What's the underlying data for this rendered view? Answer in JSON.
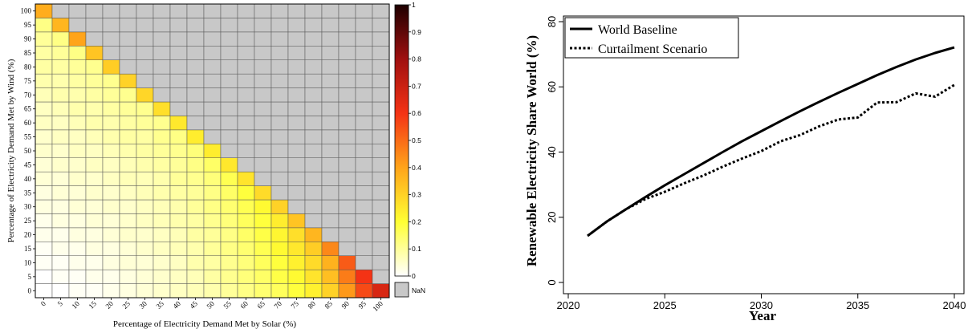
{
  "chart_data": [
    {
      "type": "heatmap",
      "xlabel": "Percentage of Electricity Demand Met by Solar (%)",
      "ylabel": "Percentage of Electricity Demand Met by Wind (%)",
      "x_ticks": [
        "0",
        "5",
        "10",
        "15",
        "20",
        "25",
        "30",
        "35",
        "40",
        "45",
        "50",
        "55",
        "60",
        "65",
        "70",
        "75",
        "80",
        "85",
        "90",
        "95",
        "100"
      ],
      "y_ticks": [
        "0",
        "5",
        "10",
        "15",
        "20",
        "25",
        "30",
        "35",
        "40",
        "45",
        "50",
        "55",
        "60",
        "65",
        "70",
        "75",
        "80",
        "85",
        "90",
        "95",
        "100"
      ],
      "colorbar": {
        "range": [
          0,
          1
        ],
        "ticks": [
          "0",
          "0.1",
          "0.2",
          "0.3",
          "0.4",
          "0.5",
          "0.6",
          "0.7",
          "0.8",
          "0.9",
          "1"
        ],
        "colors": [
          "#ffffff",
          "#ffff33",
          "#ffa41a",
          "#f43315",
          "#a01010",
          "#1e0000"
        ],
        "nan_label": "NaN",
        "nan_color": "#c8c8c8"
      },
      "values": [
        [
          0.0,
          0.0,
          0.01,
          0.01,
          0.02,
          0.03,
          0.04,
          0.05,
          0.06,
          0.07,
          0.08,
          0.1,
          0.12,
          0.14,
          0.16,
          0.19,
          0.23,
          0.3,
          0.42,
          0.56,
          0.67
        ],
        [
          0.0,
          0.01,
          0.01,
          0.02,
          0.02,
          0.03,
          0.04,
          0.05,
          0.06,
          0.07,
          0.09,
          0.11,
          0.13,
          0.15,
          0.18,
          0.21,
          0.26,
          0.34,
          0.47,
          0.6,
          null
        ],
        [
          0.01,
          0.01,
          0.02,
          0.02,
          0.03,
          0.04,
          0.04,
          0.05,
          0.06,
          0.08,
          0.09,
          0.11,
          0.13,
          0.16,
          0.19,
          0.23,
          0.28,
          0.37,
          0.53,
          null,
          null
        ],
        [
          0.01,
          0.02,
          0.02,
          0.03,
          0.03,
          0.04,
          0.05,
          0.06,
          0.07,
          0.08,
          0.1,
          0.12,
          0.14,
          0.17,
          0.21,
          0.25,
          0.31,
          0.45,
          null,
          null,
          null
        ],
        [
          0.02,
          0.02,
          0.03,
          0.03,
          0.04,
          0.05,
          0.05,
          0.06,
          0.07,
          0.09,
          0.1,
          0.12,
          0.15,
          0.18,
          0.22,
          0.27,
          0.36,
          null,
          null,
          null,
          null
        ],
        [
          0.02,
          0.03,
          0.03,
          0.04,
          0.04,
          0.05,
          0.06,
          0.07,
          0.08,
          0.09,
          0.11,
          0.13,
          0.16,
          0.19,
          0.24,
          0.33,
          null,
          null,
          null,
          null,
          null
        ],
        [
          0.03,
          0.03,
          0.04,
          0.04,
          0.05,
          0.05,
          0.06,
          0.07,
          0.08,
          0.1,
          0.12,
          0.14,
          0.17,
          0.21,
          0.3,
          null,
          null,
          null,
          null,
          null,
          null
        ],
        [
          0.03,
          0.04,
          0.04,
          0.05,
          0.05,
          0.06,
          0.07,
          0.08,
          0.09,
          0.1,
          0.12,
          0.15,
          0.19,
          0.28,
          null,
          null,
          null,
          null,
          null,
          null,
          null
        ],
        [
          0.04,
          0.04,
          0.05,
          0.05,
          0.06,
          0.07,
          0.07,
          0.08,
          0.1,
          0.11,
          0.13,
          0.17,
          0.26,
          null,
          null,
          null,
          null,
          null,
          null,
          null,
          null
        ],
        [
          0.04,
          0.05,
          0.05,
          0.06,
          0.06,
          0.07,
          0.08,
          0.09,
          0.1,
          0.12,
          0.15,
          0.25,
          null,
          null,
          null,
          null,
          null,
          null,
          null,
          null,
          null
        ],
        [
          0.05,
          0.05,
          0.06,
          0.06,
          0.07,
          0.08,
          0.09,
          0.1,
          0.11,
          0.13,
          0.24,
          null,
          null,
          null,
          null,
          null,
          null,
          null,
          null,
          null,
          null
        ],
        [
          0.05,
          0.06,
          0.06,
          0.07,
          0.08,
          0.09,
          0.09,
          0.11,
          0.12,
          0.24,
          null,
          null,
          null,
          null,
          null,
          null,
          null,
          null,
          null,
          null,
          null
        ],
        [
          0.06,
          0.06,
          0.07,
          0.08,
          0.08,
          0.09,
          0.1,
          0.11,
          0.25,
          null,
          null,
          null,
          null,
          null,
          null,
          null,
          null,
          null,
          null,
          null,
          null
        ],
        [
          0.06,
          0.07,
          0.08,
          0.08,
          0.09,
          0.1,
          0.11,
          0.27,
          null,
          null,
          null,
          null,
          null,
          null,
          null,
          null,
          null,
          null,
          null,
          null,
          null
        ],
        [
          0.07,
          0.08,
          0.08,
          0.09,
          0.1,
          0.11,
          0.29,
          null,
          null,
          null,
          null,
          null,
          null,
          null,
          null,
          null,
          null,
          null,
          null,
          null,
          null
        ],
        [
          0.08,
          0.08,
          0.09,
          0.1,
          0.11,
          0.3,
          null,
          null,
          null,
          null,
          null,
          null,
          null,
          null,
          null,
          null,
          null,
          null,
          null,
          null,
          null
        ],
        [
          0.09,
          0.09,
          0.1,
          0.11,
          0.31,
          null,
          null,
          null,
          null,
          null,
          null,
          null,
          null,
          null,
          null,
          null,
          null,
          null,
          null,
          null,
          null
        ],
        [
          0.09,
          0.1,
          0.12,
          0.33,
          null,
          null,
          null,
          null,
          null,
          null,
          null,
          null,
          null,
          null,
          null,
          null,
          null,
          null,
          null,
          null,
          null
        ],
        [
          0.1,
          0.12,
          0.4,
          null,
          null,
          null,
          null,
          null,
          null,
          null,
          null,
          null,
          null,
          null,
          null,
          null,
          null,
          null,
          null,
          null,
          null
        ],
        [
          0.12,
          0.36,
          null,
          null,
          null,
          null,
          null,
          null,
          null,
          null,
          null,
          null,
          null,
          null,
          null,
          null,
          null,
          null,
          null,
          null,
          null
        ],
        [
          0.38,
          null,
          null,
          null,
          null,
          null,
          null,
          null,
          null,
          null,
          null,
          null,
          null,
          null,
          null,
          null,
          null,
          null,
          null,
          null,
          null
        ]
      ]
    },
    {
      "type": "line",
      "xlabel": "Year",
      "ylabel": "Renewable Electricity Share World (%)",
      "xlim": [
        2020,
        2040
      ],
      "ylim": [
        0,
        80
      ],
      "x_ticks": [
        "2020",
        "2025",
        "2030",
        "2035",
        "2040"
      ],
      "y_ticks": [
        "0",
        "20",
        "40",
        "60",
        "80"
      ],
      "legend_position": "top-left",
      "x": [
        2021,
        2022,
        2023,
        2024,
        2025,
        2026,
        2027,
        2028,
        2029,
        2030,
        2031,
        2032,
        2033,
        2034,
        2035,
        2036,
        2037,
        2038,
        2039,
        2040
      ],
      "series": [
        {
          "name": "World Baseline",
          "style": "solid",
          "values": [
            14.3,
            18.7,
            22.5,
            26.2,
            29.8,
            33.2,
            36.6,
            40.0,
            43.3,
            46.4,
            49.5,
            52.5,
            55.4,
            58.2,
            60.9,
            63.6,
            66.1,
            68.4,
            70.4,
            72.1
          ]
        },
        {
          "name": "Curtailment Scenario",
          "style": "dotted",
          "values": [
            14.3,
            18.7,
            22.5,
            25.6,
            27.8,
            30.4,
            32.8,
            35.5,
            38.0,
            40.3,
            43.3,
            45.2,
            47.9,
            50.0,
            50.6,
            55.2,
            55.3,
            58.0,
            57.0,
            60.6
          ]
        }
      ]
    }
  ]
}
